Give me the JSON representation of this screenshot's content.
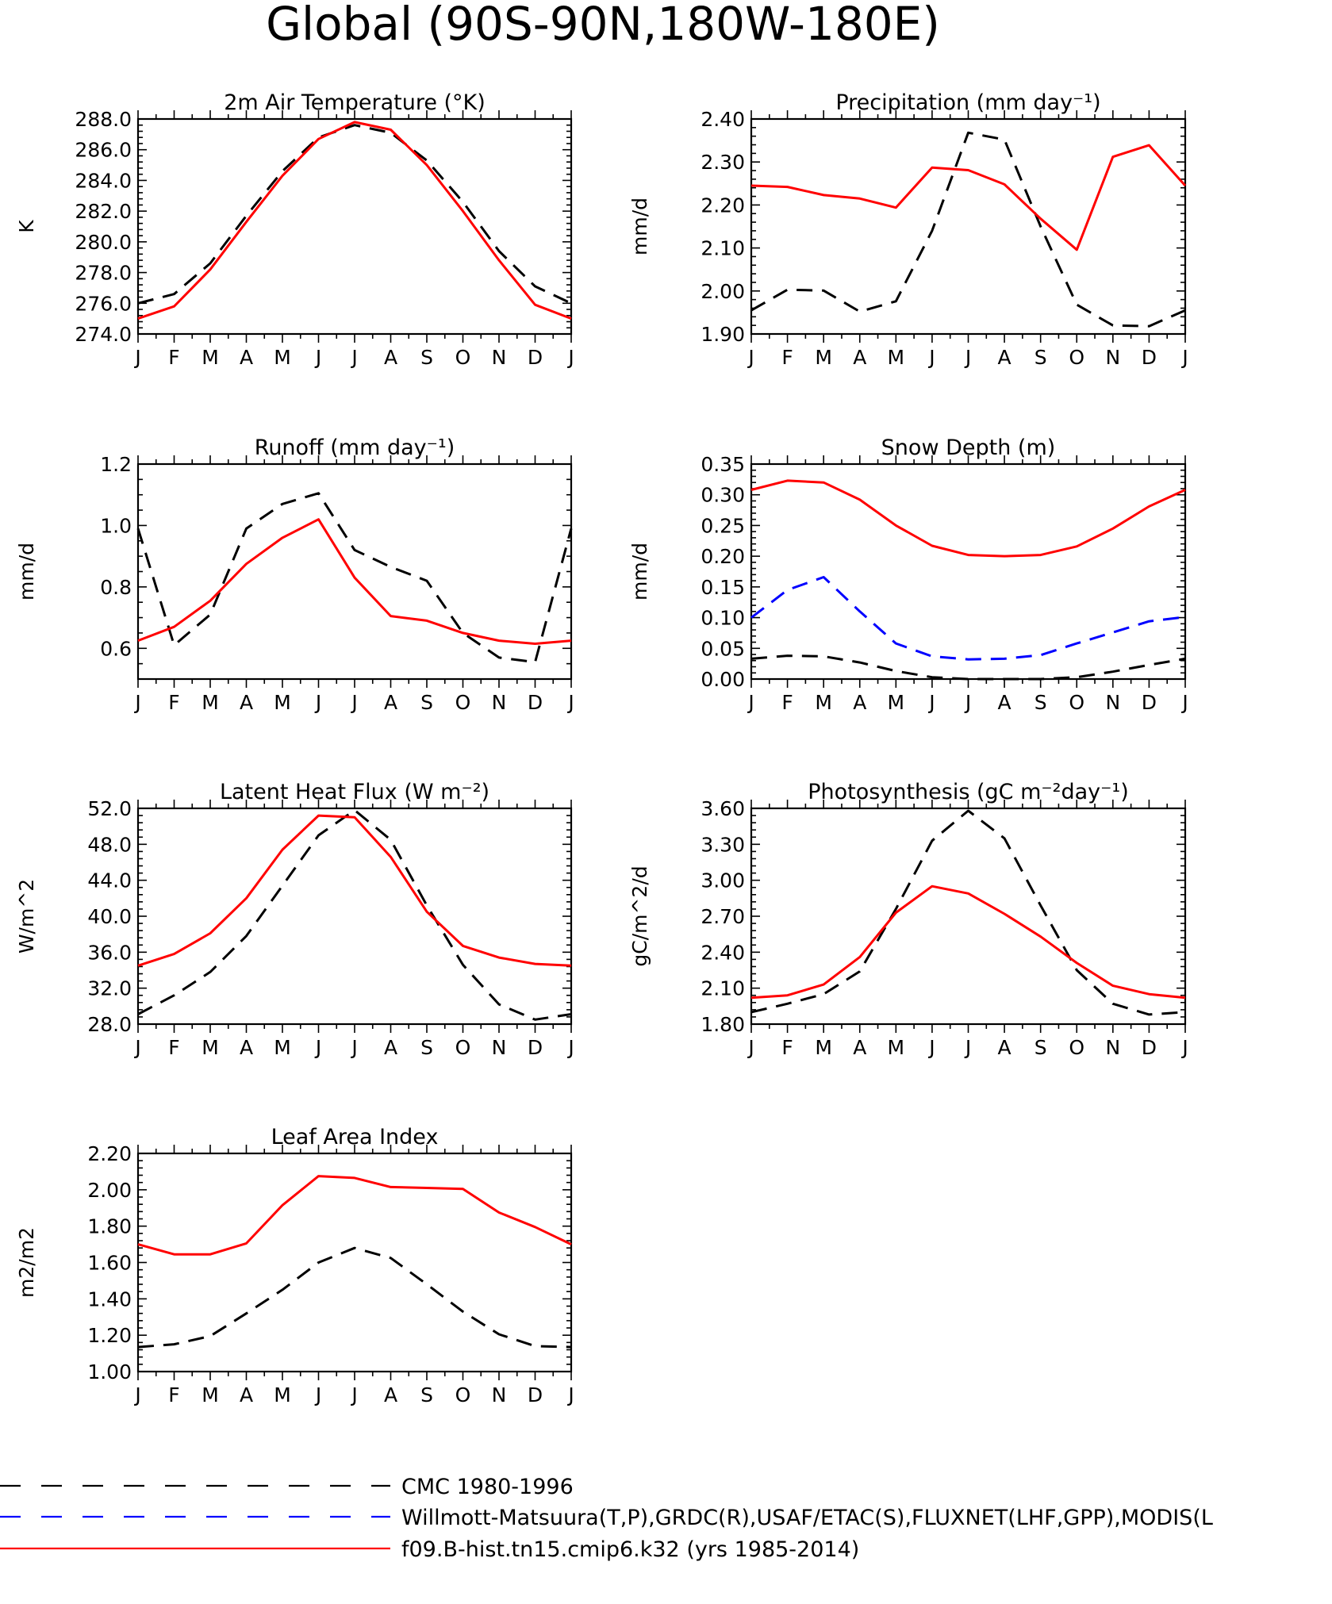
{
  "page_title": "Global (90S-90N,180W-180E)",
  "colors": {
    "cmc": "#000000",
    "obs": "#0000ff",
    "model": "#ff0000"
  },
  "legend": [
    {
      "key": "cmc",
      "label": "CMC 1980-1996",
      "color": "#000000",
      "dash": "dashed"
    },
    {
      "key": "obs",
      "label": "Willmott-Matsuura(T,P),GRDC(R),USAF/ETAC(S),FLUXNET(LHF,GPP),MODIS(L",
      "color": "#0000ff",
      "dash": "dashed"
    },
    {
      "key": "model",
      "label": "f09.B-hist.tn15.cmip6.k32 (yrs 1985-2014)",
      "color": "#ff0000",
      "dash": "solid"
    }
  ],
  "chart_data": [
    {
      "id": "temperature",
      "type": "line",
      "title": "2m Air Temperature (°K)",
      "ylabel": "K",
      "ylim": [
        274.0,
        288.0
      ],
      "yticks": [
        274.0,
        276.0,
        278.0,
        280.0,
        282.0,
        284.0,
        286.0,
        288.0
      ],
      "ytick_labels": [
        "274.0",
        "276.0",
        "278.0",
        "280.0",
        "282.0",
        "284.0",
        "286.0",
        "288.0"
      ],
      "x_labels": [
        "J",
        "F",
        "M",
        "A",
        "M",
        "J",
        "J",
        "A",
        "S",
        "O",
        "N",
        "D",
        "J"
      ],
      "series": [
        {
          "key": "cmc",
          "values": [
            276.0,
            276.6,
            278.6,
            281.7,
            284.6,
            286.8,
            287.6,
            287.1,
            285.3,
            282.6,
            279.4,
            277.1,
            276.0
          ]
        },
        {
          "key": "model",
          "values": [
            275.0,
            275.8,
            278.2,
            281.3,
            284.3,
            286.7,
            287.8,
            287.3,
            285.0,
            282.0,
            278.8,
            275.9,
            275.0
          ]
        }
      ]
    },
    {
      "id": "precipitation",
      "type": "line",
      "title": "Precipitation (mm day⁻¹)",
      "ylabel": "mm/d",
      "ylim": [
        1.9,
        2.4
      ],
      "yticks": [
        1.9,
        2.0,
        2.1,
        2.2,
        2.3,
        2.4
      ],
      "ytick_labels": [
        "1.90",
        "2.00",
        "2.10",
        "2.20",
        "2.30",
        "2.40"
      ],
      "x_labels": [
        "J",
        "F",
        "M",
        "A",
        "M",
        "J",
        "J",
        "A",
        "S",
        "O",
        "N",
        "D",
        "J"
      ],
      "series": [
        {
          "key": "cmc",
          "values": [
            1.955,
            2.003,
            2.001,
            1.952,
            1.976,
            2.14,
            2.368,
            2.352,
            2.15,
            1.968,
            1.92,
            1.918,
            1.955
          ]
        },
        {
          "key": "model",
          "values": [
            2.245,
            2.242,
            2.223,
            2.215,
            2.194,
            2.287,
            2.281,
            2.248,
            2.168,
            2.096,
            2.312,
            2.339,
            2.245
          ]
        }
      ]
    },
    {
      "id": "runoff",
      "type": "line",
      "title": "Runoff (mm day⁻¹)",
      "ylabel": "mm/d",
      "ylim": [
        0.5,
        1.2
      ],
      "yticks": [
        0.6,
        0.8,
        1.0,
        1.2
      ],
      "ytick_labels": [
        "0.6",
        "0.8",
        "1.0",
        "1.2"
      ],
      "minor_yticks": [
        0.5,
        0.55,
        0.65,
        0.7,
        0.75,
        0.85,
        0.9,
        0.95,
        1.05,
        1.1,
        1.15
      ],
      "x_labels": [
        "J",
        "F",
        "M",
        "A",
        "M",
        "J",
        "J",
        "A",
        "S",
        "O",
        "N",
        "D",
        "J"
      ],
      "series": [
        {
          "key": "cmc",
          "values": [
            0.99,
            0.61,
            0.71,
            0.99,
            1.07,
            1.105,
            0.92,
            0.865,
            0.82,
            0.65,
            0.57,
            0.555,
            0.99
          ]
        },
        {
          "key": "model",
          "values": [
            0.625,
            0.67,
            0.755,
            0.875,
            0.96,
            1.02,
            0.83,
            0.705,
            0.69,
            0.65,
            0.625,
            0.615,
            0.625
          ]
        }
      ]
    },
    {
      "id": "snowdepth",
      "type": "line",
      "title": "Snow Depth (m)",
      "ylabel": "mm/d",
      "ylim": [
        0.0,
        0.35
      ],
      "yticks": [
        0.0,
        0.05,
        0.1,
        0.15,
        0.2,
        0.25,
        0.3,
        0.35
      ],
      "ytick_labels": [
        "0.00",
        "0.05",
        "0.10",
        "0.15",
        "0.20",
        "0.25",
        "0.30",
        "0.35"
      ],
      "x_labels": [
        "J",
        "F",
        "M",
        "A",
        "M",
        "J",
        "J",
        "A",
        "S",
        "O",
        "N",
        "D",
        "J"
      ],
      "series": [
        {
          "key": "cmc",
          "values": [
            0.033,
            0.038,
            0.037,
            0.027,
            0.013,
            0.003,
            0.0,
            0.0,
            0.0,
            0.003,
            0.012,
            0.023,
            0.033
          ]
        },
        {
          "key": "obs",
          "values": [
            0.1,
            0.145,
            0.166,
            0.11,
            0.058,
            0.037,
            0.032,
            0.033,
            0.039,
            0.058,
            0.076,
            0.094,
            0.101
          ]
        },
        {
          "key": "model",
          "values": [
            0.308,
            0.323,
            0.32,
            0.292,
            0.25,
            0.217,
            0.202,
            0.2,
            0.202,
            0.216,
            0.245,
            0.281,
            0.308
          ]
        }
      ]
    },
    {
      "id": "latentheat",
      "type": "line",
      "title": "Latent Heat Flux (W m⁻²)",
      "ylabel": "W/m^2",
      "ylim": [
        28.0,
        52.0
      ],
      "yticks": [
        28.0,
        32.0,
        36.0,
        40.0,
        44.0,
        48.0,
        52.0
      ],
      "ytick_labels": [
        "28.0",
        "32.0",
        "36.0",
        "40.0",
        "44.0",
        "48.0",
        "52.0"
      ],
      "x_labels": [
        "J",
        "F",
        "M",
        "A",
        "M",
        "J",
        "J",
        "A",
        "S",
        "O",
        "N",
        "D",
        "J"
      ],
      "series": [
        {
          "key": "cmc",
          "values": [
            29.1,
            31.2,
            33.8,
            37.8,
            43.4,
            49.0,
            51.8,
            48.5,
            41.2,
            34.6,
            30.2,
            28.5,
            29.1
          ]
        },
        {
          "key": "model",
          "values": [
            34.5,
            35.8,
            38.1,
            42.0,
            47.4,
            51.2,
            51.0,
            46.6,
            40.5,
            36.7,
            35.4,
            34.7,
            34.5
          ]
        }
      ]
    },
    {
      "id": "photosynthesis",
      "type": "line",
      "title": "Photosynthesis (gC m⁻²day⁻¹)",
      "ylabel": "gC/m^2/d",
      "ylim": [
        1.8,
        3.6
      ],
      "yticks": [
        1.8,
        2.1,
        2.4,
        2.7,
        3.0,
        3.3,
        3.6
      ],
      "ytick_labels": [
        "1.80",
        "2.10",
        "2.40",
        "2.70",
        "3.00",
        "3.30",
        "3.60"
      ],
      "x_labels": [
        "J",
        "F",
        "M",
        "A",
        "M",
        "J",
        "J",
        "A",
        "S",
        "O",
        "N",
        "D",
        "J"
      ],
      "series": [
        {
          "key": "cmc",
          "values": [
            1.9,
            1.97,
            2.05,
            2.24,
            2.76,
            3.33,
            3.58,
            3.35,
            2.79,
            2.25,
            1.97,
            1.88,
            1.9
          ]
        },
        {
          "key": "model",
          "values": [
            2.02,
            2.04,
            2.13,
            2.36,
            2.73,
            2.95,
            2.89,
            2.72,
            2.53,
            2.31,
            2.12,
            2.05,
            2.02
          ]
        }
      ]
    },
    {
      "id": "lai",
      "type": "line",
      "title": "Leaf Area Index",
      "ylabel": "m2/m2",
      "ylim": [
        1.0,
        2.2
      ],
      "yticks": [
        1.0,
        1.2,
        1.4,
        1.6,
        1.8,
        2.0,
        2.2
      ],
      "ytick_labels": [
        "1.00",
        "1.20",
        "1.40",
        "1.60",
        "1.80",
        "2.00",
        "2.20"
      ],
      "x_labels": [
        "J",
        "F",
        "M",
        "A",
        "M",
        "J",
        "J",
        "A",
        "S",
        "O",
        "N",
        "D",
        "J"
      ],
      "series": [
        {
          "key": "cmc",
          "values": [
            1.135,
            1.15,
            1.195,
            1.32,
            1.45,
            1.6,
            1.68,
            1.625,
            1.48,
            1.33,
            1.205,
            1.14,
            1.135
          ]
        },
        {
          "key": "model",
          "values": [
            1.7,
            1.645,
            1.645,
            1.705,
            1.915,
            2.075,
            2.065,
            2.015,
            2.01,
            2.005,
            1.875,
            1.795,
            1.7
          ]
        }
      ]
    }
  ]
}
